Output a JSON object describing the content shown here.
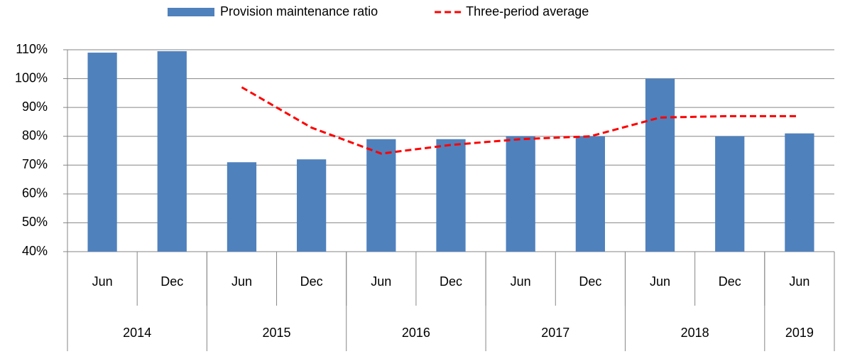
{
  "chart_data": {
    "type": "bar_line",
    "categories": [
      "Jun",
      "Dec",
      "Jun",
      "Dec",
      "Jun",
      "Dec",
      "Jun",
      "Dec",
      "Jun",
      "Dec",
      "Jun"
    ],
    "groups": [
      {
        "label": "2014",
        "count": 2
      },
      {
        "label": "2015",
        "count": 2
      },
      {
        "label": "2016",
        "count": 2
      },
      {
        "label": "2017",
        "count": 2
      },
      {
        "label": "2018",
        "count": 2
      },
      {
        "label": "2019",
        "count": 1
      }
    ],
    "series": [
      {
        "name": "Provision maintenance ratio",
        "type": "bar",
        "color": "#4f81bd",
        "values": [
          109,
          109.5,
          71,
          72,
          79,
          79,
          80,
          80,
          100,
          80,
          81
        ]
      },
      {
        "name": "Three-period average",
        "type": "line",
        "color": "#ff0000",
        "dashed": true,
        "values": [
          null,
          null,
          97,
          83,
          74,
          77,
          79,
          80,
          86.5,
          87,
          87
        ]
      }
    ],
    "ylim": [
      40,
      110
    ],
    "yticks": [
      {
        "value": 40,
        "label": "40%"
      },
      {
        "value": 50,
        "label": "50%"
      },
      {
        "value": 60,
        "label": "60%"
      },
      {
        "value": 70,
        "label": "70%"
      },
      {
        "value": 80,
        "label": "80%"
      },
      {
        "value": 90,
        "label": "90%"
      },
      {
        "value": 100,
        "label": "100%"
      },
      {
        "value": 110,
        "label": "110%"
      }
    ],
    "grid": true,
    "legend": "top"
  }
}
